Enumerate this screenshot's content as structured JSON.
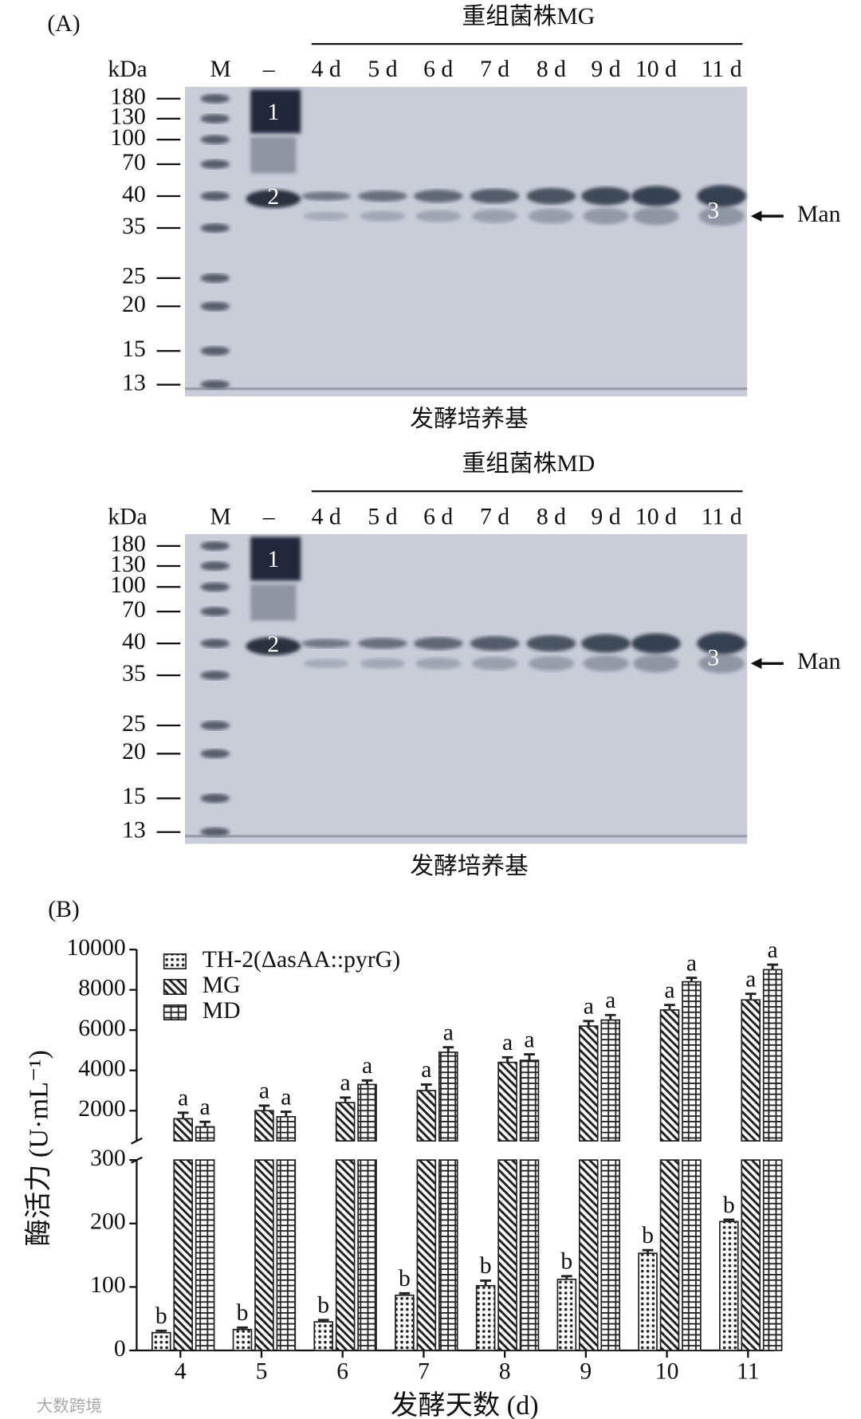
{
  "panel_a": {
    "label": "(A)",
    "gels": [
      {
        "title": "重组菌株MG",
        "unit": "kDa",
        "lanes": [
          "M",
          "–",
          "4 d",
          "5 d",
          "6 d",
          "7 d",
          "8 d",
          "9 d",
          "10 d",
          "11 d"
        ],
        "markers": [
          "180",
          "130",
          "100",
          "70",
          "40",
          "35",
          "25",
          "20",
          "15",
          "13"
        ],
        "band_labels": [
          "1",
          "2",
          "3"
        ],
        "arrow_label": "Man",
        "caption": "发酵培养基"
      },
      {
        "title": "重组菌株MD",
        "unit": "kDa",
        "lanes": [
          "M",
          "–",
          "4 d",
          "5 d",
          "6 d",
          "7 d",
          "8 d",
          "9 d",
          "10 d",
          "11 d"
        ],
        "markers": [
          "180",
          "130",
          "100",
          "70",
          "40",
          "35",
          "25",
          "20",
          "15",
          "13"
        ],
        "band_labels": [
          "1",
          "2",
          "3"
        ],
        "arrow_label": "Man",
        "caption": "发酵培养基"
      }
    ]
  },
  "chart_data": {
    "type": "bar",
    "label": "(B)",
    "x_label": "发酵天数 (d)",
    "y_label": "酶活力 (U·mL⁻¹)",
    "categories": [
      "4",
      "5",
      "6",
      "7",
      "8",
      "9",
      "10",
      "11"
    ],
    "ylim": [
      0,
      300
    ],
    "yticks": [
      0,
      100,
      200,
      300
    ],
    "y_break": {
      "ylim": [
        500,
        10000
      ],
      "yticks": [
        2000,
        4000,
        6000,
        8000,
        10000
      ]
    },
    "legend": "upper left",
    "series": [
      {
        "name": "TH-2(ΔasAA::pyrG)",
        "color": "#222222",
        "pattern": "dots",
        "values": [
          28,
          33,
          45,
          87,
          102,
          112,
          153,
          203
        ],
        "errors": [
          3,
          3,
          3,
          3,
          8,
          5,
          5,
          3
        ],
        "letters": [
          "b",
          "b",
          "b",
          "b",
          "b",
          "b",
          "b",
          "b"
        ]
      },
      {
        "name": "MG",
        "color": "#222222",
        "pattern": "hatch",
        "values": [
          1600,
          2000,
          2400,
          3000,
          4400,
          6200,
          7000,
          7500
        ],
        "errors": [
          300,
          250,
          250,
          300,
          250,
          250,
          250,
          300
        ],
        "letters": [
          "a",
          "a",
          "a",
          "a",
          "a",
          "a",
          "a",
          "a"
        ]
      },
      {
        "name": "MD",
        "color": "#222222",
        "pattern": "brick",
        "values": [
          1200,
          1700,
          3300,
          4900,
          4500,
          6500,
          8400,
          9000
        ],
        "errors": [
          250,
          250,
          200,
          250,
          300,
          250,
          200,
          250
        ],
        "letters": [
          "a",
          "a",
          "a",
          "a",
          "a",
          "a",
          "a",
          "a"
        ]
      }
    ]
  },
  "watermark": "大数跨境"
}
